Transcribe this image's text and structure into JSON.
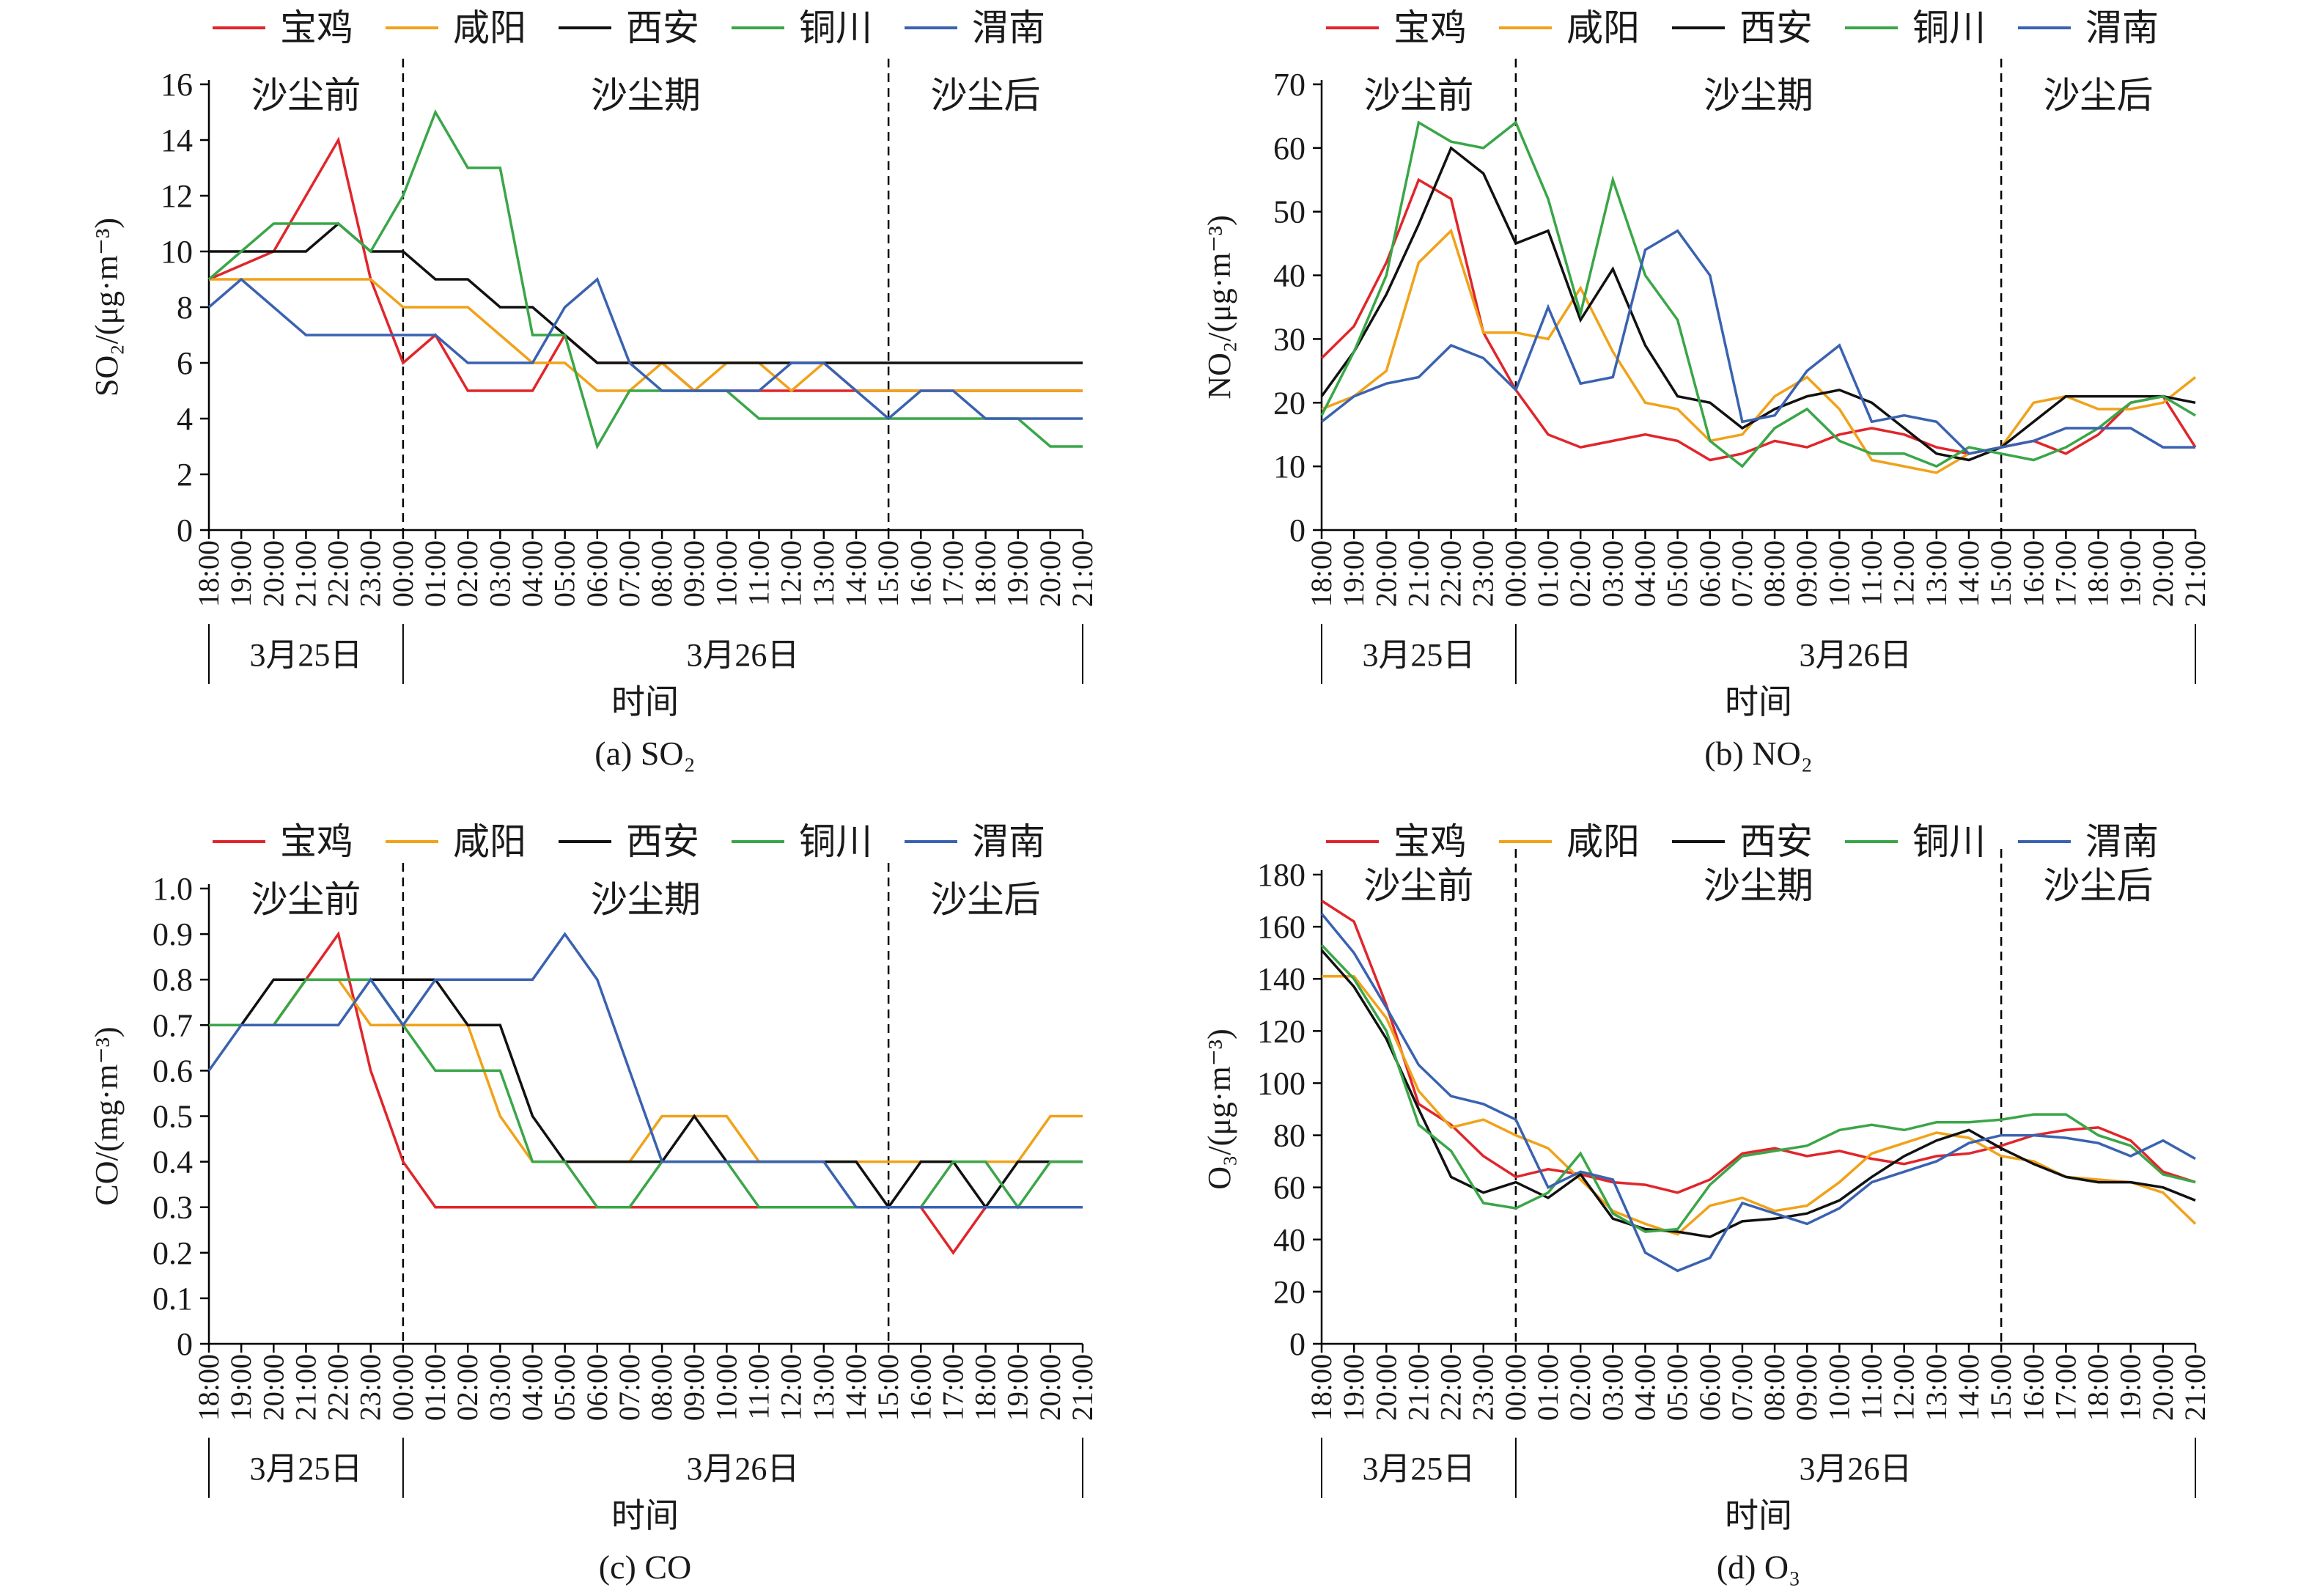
{
  "figure": {
    "legend": [
      "宝鸡",
      "咸阳",
      "西安",
      "铜川",
      "渭南"
    ],
    "colors": {
      "宝鸡": "#e0262b",
      "咸阳": "#f0a21a",
      "西安": "#111111",
      "铜川": "#3aa648",
      "渭南": "#3a62b0"
    },
    "phases": [
      "沙尘前",
      "沙尘期",
      "沙尘后"
    ],
    "dates": [
      "3月25日",
      "3月26日"
    ],
    "xlabel": "时间"
  },
  "chart_data": [
    {
      "type": "line",
      "caption": "(a) SO₂",
      "ylabel": "SO₂/(μg·m⁻³)",
      "ylim": [
        0,
        16
      ],
      "yticks": [
        0,
        2,
        4,
        6,
        8,
        10,
        12,
        14,
        16
      ],
      "x": [
        "18:00",
        "19:00",
        "20:00",
        "21:00",
        "22:00",
        "23:00",
        "00:00",
        "01:00",
        "02:00",
        "03:00",
        "04:00",
        "05:00",
        "06:00",
        "07:00",
        "08:00",
        "09:00",
        "10:00",
        "11:00",
        "12:00",
        "13:00",
        "14:00",
        "15:00",
        "16:00",
        "17:00",
        "18:00",
        "19:00",
        "20:00",
        "21:00"
      ],
      "phase_dividers": [
        "00:00",
        "15:00"
      ],
      "series": [
        {
          "name": "宝鸡",
          "values": [
            9,
            9.5,
            10,
            12,
            14,
            9,
            6,
            7,
            5,
            5,
            5,
            7,
            6,
            6,
            6,
            5,
            5,
            5,
            5,
            5,
            5,
            5,
            5,
            5,
            5,
            5,
            5,
            5
          ]
        },
        {
          "name": "咸阳",
          "values": [
            9,
            9,
            9,
            9,
            9,
            9,
            8,
            8,
            8,
            7,
            6,
            6,
            5,
            5,
            6,
            5,
            6,
            6,
            5,
            6,
            5,
            5,
            5,
            5,
            5,
            5,
            5,
            5
          ]
        },
        {
          "name": "西安",
          "values": [
            10,
            10,
            10,
            10,
            11,
            10,
            10,
            9,
            9,
            8,
            8,
            7,
            6,
            6,
            6,
            6,
            6,
            6,
            6,
            6,
            6,
            6,
            6,
            6,
            6,
            6,
            6,
            6
          ]
        },
        {
          "name": "铜川",
          "values": [
            9,
            10,
            11,
            11,
            11,
            10,
            12,
            15,
            13,
            13,
            7,
            7,
            3,
            5,
            5,
            5,
            5,
            4,
            4,
            4,
            4,
            4,
            4,
            4,
            4,
            4,
            3,
            3
          ]
        },
        {
          "name": "渭南",
          "values": [
            8,
            9,
            8,
            7,
            7,
            7,
            7,
            7,
            6,
            6,
            6,
            8,
            9,
            6,
            5,
            5,
            5,
            5,
            6,
            6,
            5,
            4,
            5,
            5,
            4,
            4,
            4,
            4
          ]
        }
      ]
    },
    {
      "type": "line",
      "caption": "(b) NO₂",
      "ylabel": "NO₂/(μg·m⁻³)",
      "ylim": [
        0,
        70
      ],
      "yticks": [
        0,
        10,
        20,
        30,
        40,
        50,
        60,
        70
      ],
      "x": [
        "18:00",
        "19:00",
        "20:00",
        "21:00",
        "22:00",
        "23:00",
        "00:00",
        "01:00",
        "02:00",
        "03:00",
        "04:00",
        "05:00",
        "06:00",
        "07:00",
        "08:00",
        "09:00",
        "10:00",
        "11:00",
        "12:00",
        "13:00",
        "14:00",
        "15:00",
        "16:00",
        "17:00",
        "18:00",
        "19:00",
        "20:00",
        "21:00"
      ],
      "phase_dividers": [
        "00:00",
        "15:00"
      ],
      "series": [
        {
          "name": "宝鸡",
          "values": [
            27,
            32,
            42,
            55,
            52,
            31,
            22,
            15,
            13,
            14,
            15,
            14,
            11,
            12,
            14,
            13,
            15,
            16,
            15,
            13,
            12,
            13,
            14,
            12,
            15,
            20,
            21,
            13
          ]
        },
        {
          "name": "咸阳",
          "values": [
            19,
            21,
            25,
            42,
            47,
            31,
            31,
            30,
            38,
            28,
            20,
            19,
            14,
            15,
            21,
            24,
            19,
            11,
            10,
            9,
            12,
            13,
            20,
            21,
            19,
            19,
            20,
            24
          ]
        },
        {
          "name": "西安",
          "values": [
            21,
            28,
            37,
            48,
            60,
            56,
            45,
            47,
            33,
            41,
            29,
            21,
            20,
            16,
            19,
            21,
            22,
            20,
            16,
            12,
            11,
            13,
            17,
            21,
            21,
            21,
            21,
            20
          ]
        },
        {
          "name": "铜川",
          "values": [
            18,
            28,
            40,
            64,
            61,
            60,
            64,
            52,
            34,
            55,
            40,
            33,
            14,
            10,
            16,
            19,
            14,
            12,
            12,
            10,
            13,
            12,
            11,
            13,
            16,
            20,
            21,
            18
          ]
        },
        {
          "name": "渭南",
          "values": [
            17,
            21,
            23,
            24,
            29,
            27,
            22,
            35,
            23,
            24,
            44,
            47,
            40,
            17,
            18,
            25,
            29,
            17,
            18,
            17,
            12,
            13,
            14,
            16,
            16,
            16,
            13,
            13
          ]
        }
      ]
    },
    {
      "type": "line",
      "caption": "(c) CO",
      "ylabel": "CO/(mg·m⁻³)",
      "ylim": [
        0,
        1.0
      ],
      "yticks": [
        0,
        0.1,
        0.2,
        0.3,
        0.4,
        0.5,
        0.6,
        0.7,
        0.8,
        0.9,
        1.0
      ],
      "x": [
        "18:00",
        "19:00",
        "20:00",
        "21:00",
        "22:00",
        "23:00",
        "00:00",
        "01:00",
        "02:00",
        "03:00",
        "04:00",
        "05:00",
        "06:00",
        "07:00",
        "08:00",
        "09:00",
        "10:00",
        "11:00",
        "12:00",
        "13:00",
        "14:00",
        "15:00",
        "16:00",
        "17:00",
        "18:00",
        "19:00",
        "20:00",
        "21:00"
      ],
      "phase_dividers": [
        "00:00",
        "15:00"
      ],
      "series": [
        {
          "name": "宝鸡",
          "values": [
            0.7,
            0.7,
            0.7,
            0.8,
            0.9,
            0.6,
            0.4,
            0.3,
            0.3,
            0.3,
            0.3,
            0.3,
            0.3,
            0.3,
            0.3,
            0.3,
            0.3,
            0.3,
            0.3,
            0.3,
            0.3,
            0.3,
            0.3,
            0.2,
            0.3,
            0.3,
            0.3,
            0.3
          ]
        },
        {
          "name": "咸阳",
          "values": [
            0.7,
            0.7,
            0.7,
            0.8,
            0.8,
            0.7,
            0.7,
            0.7,
            0.7,
            0.5,
            0.4,
            0.4,
            0.4,
            0.4,
            0.5,
            0.5,
            0.5,
            0.4,
            0.4,
            0.4,
            0.4,
            0.4,
            0.4,
            0.4,
            0.4,
            0.4,
            0.5,
            0.5
          ]
        },
        {
          "name": "西安",
          "values": [
            0.7,
            0.7,
            0.8,
            0.8,
            0.8,
            0.8,
            0.8,
            0.8,
            0.7,
            0.7,
            0.5,
            0.4,
            0.4,
            0.4,
            0.4,
            0.5,
            0.4,
            0.4,
            0.4,
            0.4,
            0.4,
            0.3,
            0.4,
            0.4,
            0.3,
            0.4,
            0.4,
            0.4
          ]
        },
        {
          "name": "铜川",
          "values": [
            0.7,
            0.7,
            0.7,
            0.8,
            0.8,
            0.8,
            0.7,
            0.6,
            0.6,
            0.6,
            0.4,
            0.4,
            0.3,
            0.3,
            0.4,
            0.4,
            0.4,
            0.3,
            0.3,
            0.3,
            0.3,
            0.3,
            0.3,
            0.4,
            0.4,
            0.3,
            0.4,
            0.4
          ]
        },
        {
          "name": "渭南",
          "values": [
            0.6,
            0.7,
            0.7,
            0.7,
            0.7,
            0.8,
            0.7,
            0.8,
            0.8,
            0.8,
            0.8,
            0.9,
            0.8,
            0.6,
            0.4,
            0.4,
            0.4,
            0.4,
            0.4,
            0.4,
            0.3,
            0.3,
            0.3,
            0.3,
            0.3,
            0.3,
            0.3,
            0.3
          ]
        }
      ]
    },
    {
      "type": "line",
      "caption": "(d) O₃",
      "ylabel": "O₃/(μg·m⁻³)",
      "ylim": [
        0,
        180
      ],
      "yticks": [
        0,
        20,
        40,
        60,
        80,
        100,
        120,
        140,
        160,
        180
      ],
      "x": [
        "18:00",
        "19:00",
        "20:00",
        "21:00",
        "22:00",
        "23:00",
        "00:00",
        "01:00",
        "02:00",
        "03:00",
        "04:00",
        "05:00",
        "06:00",
        "07:00",
        "08:00",
        "09:00",
        "10:00",
        "11:00",
        "12:00",
        "13:00",
        "14:00",
        "15:00",
        "16:00",
        "17:00",
        "18:00",
        "19:00",
        "20:00",
        "21:00"
      ],
      "phase_dividers": [
        "00:00",
        "15:00"
      ],
      "series": [
        {
          "name": "宝鸡",
          "values": [
            170,
            162,
            130,
            92,
            84,
            72,
            64,
            67,
            65,
            62,
            61,
            58,
            63,
            73,
            75,
            72,
            74,
            71,
            69,
            72,
            73,
            76,
            80,
            82,
            83,
            78,
            66,
            62
          ]
        },
        {
          "name": "咸阳",
          "values": [
            141,
            141,
            125,
            97,
            83,
            86,
            80,
            75,
            63,
            51,
            46,
            42,
            53,
            56,
            51,
            53,
            62,
            73,
            77,
            81,
            79,
            72,
            70,
            64,
            63,
            62,
            58,
            46
          ]
        },
        {
          "name": "西安",
          "values": [
            151,
            137,
            117,
            90,
            64,
            58,
            62,
            56,
            65,
            48,
            44,
            43,
            41,
            47,
            48,
            50,
            55,
            64,
            72,
            78,
            82,
            75,
            69,
            64,
            62,
            62,
            60,
            55
          ]
        },
        {
          "name": "铜川",
          "values": [
            153,
            140,
            120,
            84,
            74,
            54,
            52,
            58,
            73,
            50,
            43,
            44,
            61,
            72,
            74,
            76,
            82,
            84,
            82,
            85,
            85,
            86,
            88,
            88,
            80,
            76,
            65,
            62
          ]
        },
        {
          "name": "渭南",
          "values": [
            165,
            150,
            129,
            107,
            95,
            92,
            86,
            60,
            66,
            63,
            35,
            28,
            33,
            54,
            50,
            46,
            52,
            62,
            66,
            70,
            77,
            80,
            80,
            79,
            77,
            72,
            78,
            71
          ]
        }
      ]
    }
  ]
}
